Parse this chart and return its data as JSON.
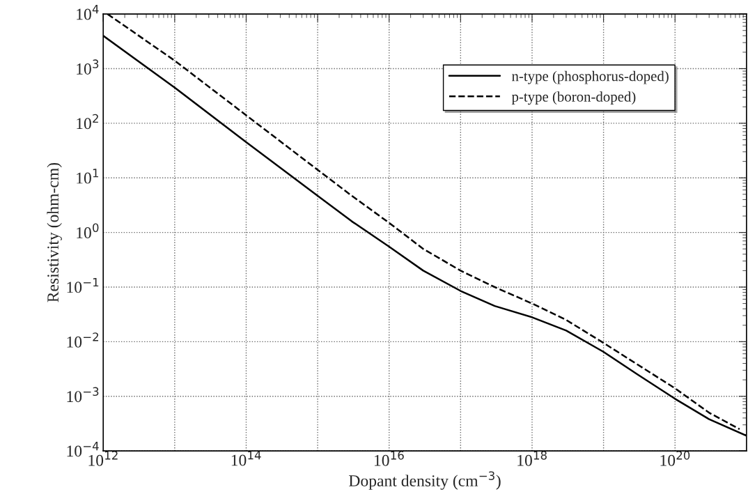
{
  "chart_data": {
    "type": "line",
    "xlabel": "Dopant density (cm$^{−3}$)",
    "ylabel": "Resistivity (ohm-cm)",
    "log": "xy",
    "grid": true,
    "legend": "top right",
    "xlim": [
      1000000000000.0,
      1e+21
    ],
    "ylim": [
      0.0001,
      10000
    ],
    "xticks": [
      {
        "value": 1000000000000.0,
        "label": "10$^{12}$"
      },
      {
        "value": 10000000000000.0,
        "label": null
      },
      {
        "value": 100000000000000.0,
        "label": "10$^{14}$"
      },
      {
        "value": 1000000000000000.0,
        "label": null
      },
      {
        "value": 1e+16,
        "label": "10$^{16}$"
      },
      {
        "value": 1e+17,
        "label": null
      },
      {
        "value": 1e+18,
        "label": "10$^{18}$"
      },
      {
        "value": 1e+19,
        "label": null
      },
      {
        "value": 1e+20,
        "label": "10$^{20}$"
      }
    ],
    "yticks": [
      {
        "value": 0.0001,
        "label": "10$^{−4}$"
      },
      {
        "value": 0.001,
        "label": "10$^{−3}$"
      },
      {
        "value": 0.01,
        "label": "10$^{−2}$"
      },
      {
        "value": 0.1,
        "label": "10$^{−1}$"
      },
      {
        "value": 1,
        "label": "10$^{0}$"
      },
      {
        "value": 10,
        "label": "10$^{1}$"
      },
      {
        "value": 100,
        "label": "10$^{2}$"
      },
      {
        "value": 1000,
        "label": "10$^{3}$"
      },
      {
        "value": 10000,
        "label": "10$^{4}$"
      }
    ],
    "series": [
      {
        "name": "n-type (phosphorus-doped)",
        "color": "#000000",
        "line_style": "solid",
        "x": [
          1000000000000.0,
          10000000000000.0,
          100000000000000.0,
          1000000000000000.0,
          3000000000000000.0,
          1e+16,
          3e+16,
          1e+17,
          3e+17,
          1e+18,
          3e+18,
          1e+19,
          3e+19,
          1e+20,
          3e+20,
          1e+21
        ],
        "values": [
          4000,
          450,
          45,
          4.7,
          1.6,
          0.55,
          0.2,
          0.085,
          0.045,
          0.028,
          0.016,
          0.0065,
          0.0025,
          0.0009,
          0.00038,
          0.00019
        ]
      },
      {
        "name": "p-type (boron-doped)",
        "color": "#000000",
        "line_style": "dashed",
        "x": [
          1150000000000.0,
          10000000000000.0,
          100000000000000.0,
          1000000000000000.0,
          3000000000000000.0,
          1e+16,
          3e+16,
          1e+17,
          3e+17,
          1e+18,
          3e+18,
          1e+19,
          3e+19,
          1e+20,
          3e+20,
          8e+20
        ],
        "values": [
          10000,
          1400,
          140,
          14,
          4.7,
          1.5,
          0.5,
          0.2,
          0.1,
          0.05,
          0.025,
          0.0095,
          0.0038,
          0.0014,
          0.0005,
          0.00025
        ]
      }
    ]
  }
}
